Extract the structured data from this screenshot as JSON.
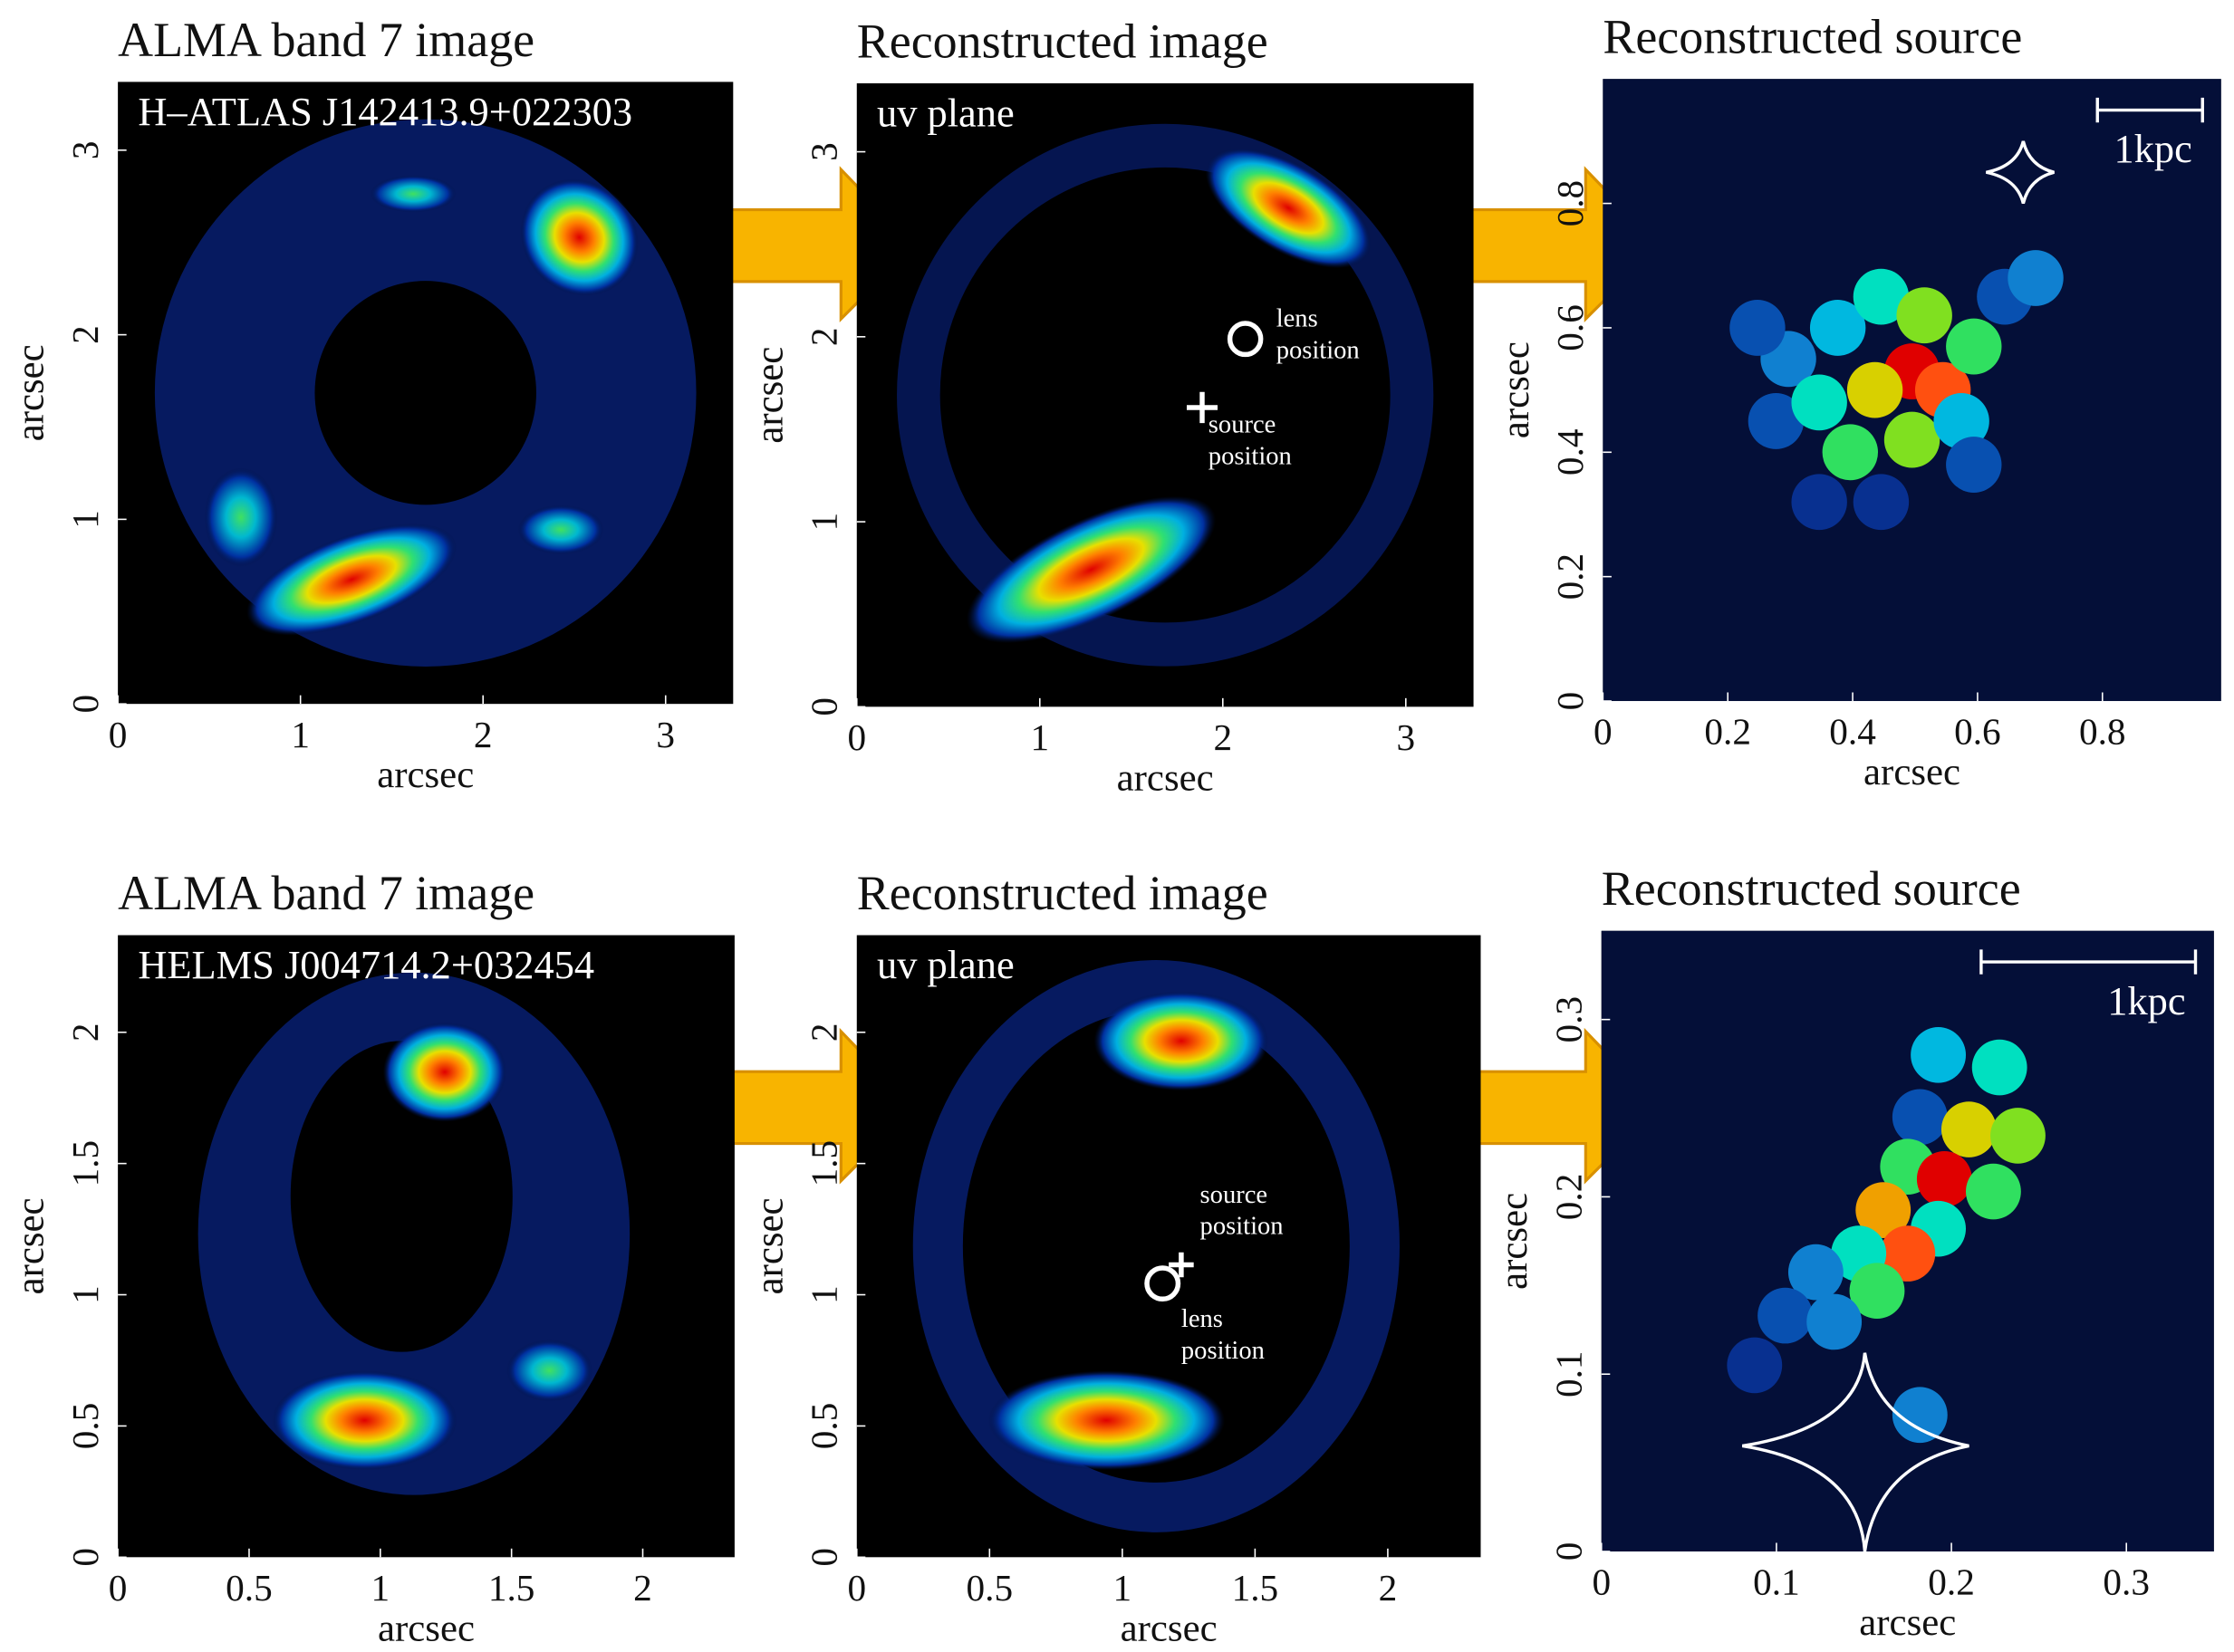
{
  "panels": [
    {
      "title": "ALMA band 7 image",
      "inset_label": "H–ATLAS J142413.9+022303",
      "xlabel": "arcsec",
      "ylabel": "arcsec",
      "xlim": [
        0,
        3.37
      ],
      "ylim": [
        0,
        3.37
      ],
      "xticks": [
        0,
        1,
        2,
        3
      ],
      "yticks": [
        0,
        1,
        2,
        3
      ]
    },
    {
      "title": "Reconstructed image",
      "inset_label": "uv plane",
      "xlabel": "arcsec",
      "ylabel": "arcsec",
      "xlim": [
        0,
        3.37
      ],
      "ylim": [
        0,
        3.37
      ],
      "xticks": [
        0,
        1,
        2,
        3
      ],
      "yticks": [
        0,
        1,
        2,
        3
      ],
      "annotations": [
        [
          "lens",
          "position"
        ],
        [
          "source",
          "position"
        ]
      ]
    },
    {
      "title": "Reconstructed source",
      "scale_label": "1kpc",
      "xlabel": "arcsec",
      "ylabel": "arcsec",
      "xlim": [
        0,
        0.99
      ],
      "ylim": [
        0,
        1.0
      ],
      "xticks": [
        0,
        0.2,
        0.4,
        0.6,
        0.8
      ],
      "yticks": [
        0,
        0.2,
        0.4,
        0.6,
        0.8
      ]
    },
    {
      "title": "ALMA band 7 image",
      "inset_label": "HELMS J004714.2+032454",
      "xlabel": "arcsec",
      "ylabel": "arcsec",
      "xlim": [
        0,
        2.35
      ],
      "ylim": [
        0,
        2.37
      ],
      "xticks": [
        0,
        0.5,
        1,
        1.5,
        2
      ],
      "yticks": [
        0,
        0.5,
        1,
        1.5,
        2
      ]
    },
    {
      "title": "Reconstructed image",
      "inset_label": "uv plane",
      "xlabel": "arcsec",
      "ylabel": "arcsec",
      "xlim": [
        0,
        2.35
      ],
      "ylim": [
        0,
        2.37
      ],
      "xticks": [
        0,
        0.5,
        1,
        1.5,
        2
      ],
      "yticks": [
        0,
        0.5,
        1,
        1.5,
        2
      ],
      "annotations": [
        [
          "source",
          "position"
        ],
        [
          "lens",
          "position"
        ]
      ]
    },
    {
      "title": "Reconstructed source",
      "scale_label": "1kpc",
      "xlabel": "arcsec",
      "ylabel": "arcsec",
      "xlim": [
        0,
        0.35
      ],
      "ylim": [
        0,
        0.35
      ],
      "xticks": [
        0,
        0.1,
        0.2,
        0.3
      ],
      "yticks": [
        0,
        0.1,
        0.2,
        0.3
      ]
    }
  ]
}
